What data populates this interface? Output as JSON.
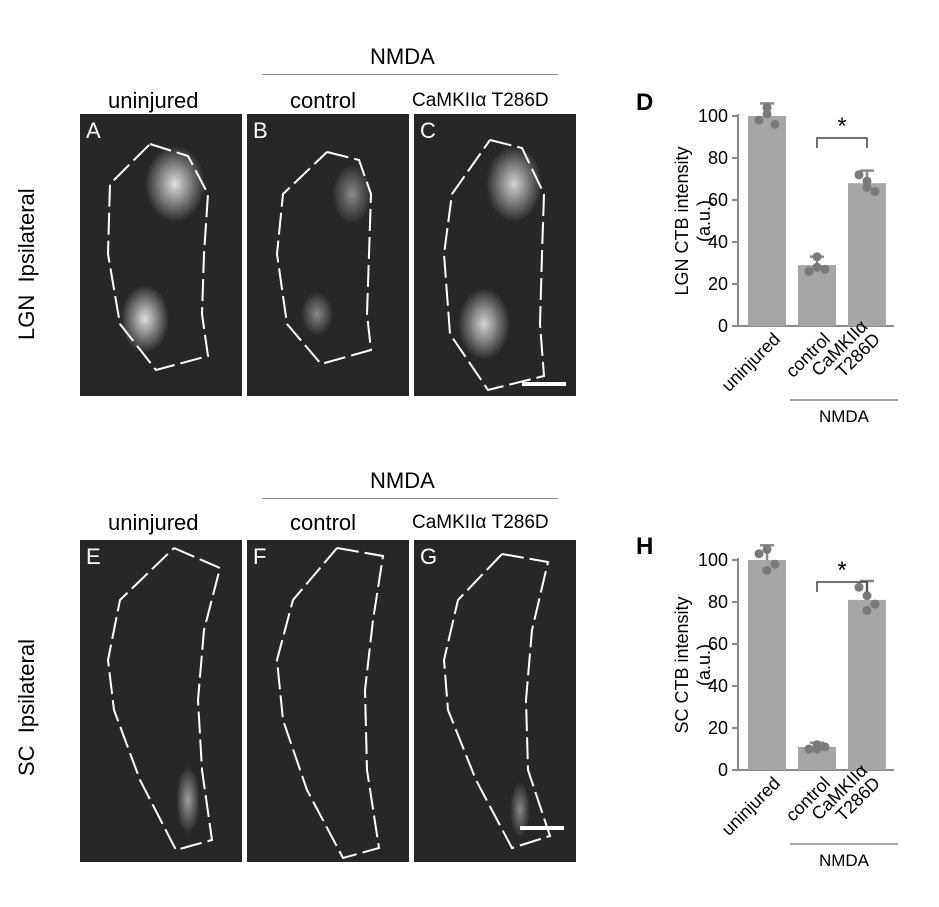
{
  "top_row": {
    "nmda_label": "NMDA",
    "col_headers": [
      "uninjured",
      "control",
      "CaMKIIα T286D"
    ],
    "row_label_region": "LGN",
    "row_label_side": "Ipsilateral",
    "panel_letters": [
      "A",
      "B",
      "C"
    ]
  },
  "bottom_row": {
    "nmda_label": "NMDA",
    "col_headers": [
      "uninjured",
      "control",
      "CaMKIIα T286D"
    ],
    "row_label_region": "SC",
    "row_label_side": "Ipsilateral",
    "panel_letters": [
      "E",
      "F",
      "G"
    ]
  },
  "chart_data": [
    {
      "letter": "D",
      "type": "bar",
      "ylabel_line1": "LGN CTB intensity",
      "ylabel_line2": "(a.u.)",
      "categories": [
        "uninjured",
        "control",
        "CaMKIIα T286D"
      ],
      "category_labels": [
        [
          "uninjured"
        ],
        [
          "control"
        ],
        [
          "CaMKIIα",
          "T286D"
        ]
      ],
      "values": [
        100,
        29,
        68
      ],
      "errors": [
        6,
        4,
        6
      ],
      "points": [
        [
          98,
          104,
          96,
          101
        ],
        [
          26,
          33,
          27,
          28
        ],
        [
          72,
          66,
          64,
          69
        ]
      ],
      "ylim": [
        0,
        100
      ],
      "yticks": [
        0,
        20,
        40,
        60,
        80,
        100
      ],
      "significance": "*",
      "group_label": "NMDA",
      "bar_color": "#a6a6a6",
      "point_color": "#7a7a7a"
    },
    {
      "letter": "H",
      "type": "bar",
      "ylabel_line1": "SC CTB intensity",
      "ylabel_line2": "(a.u.)",
      "categories": [
        "uninjured",
        "control",
        "CaMKIIα T286D"
      ],
      "category_labels": [
        [
          "uninjured"
        ],
        [
          "control"
        ],
        [
          "CaMKIIα",
          "T286D"
        ]
      ],
      "values": [
        100,
        11,
        81
      ],
      "errors": [
        7,
        2,
        9
      ],
      "points": [
        [
          103,
          105,
          98,
          95
        ],
        [
          10,
          12,
          11,
          10
        ],
        [
          87,
          76,
          79,
          83
        ]
      ],
      "ylim": [
        0,
        100
      ],
      "yticks": [
        0,
        20,
        40,
        60,
        80,
        100
      ],
      "significance": "*",
      "group_label": "NMDA",
      "bar_color": "#a6a6a6",
      "point_color": "#7a7a7a"
    }
  ]
}
